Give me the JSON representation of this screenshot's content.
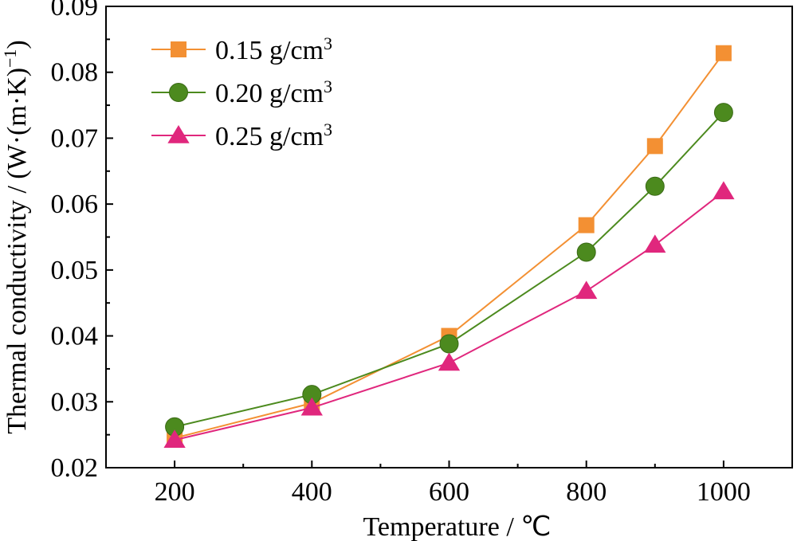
{
  "chart_data": {
    "type": "line",
    "title": "",
    "xlabel": "Temperature / ℃",
    "ylabel": {
      "main": "Thermal conductivity / (W·(m·K)",
      "sup": "−1",
      "end": ")"
    },
    "xlim": [
      100,
      1100
    ],
    "ylim": [
      0.02,
      0.09
    ],
    "xticks": [
      200,
      400,
      600,
      800,
      1000
    ],
    "xtick_labels": [
      "200",
      "400",
      "600",
      "800",
      "1000"
    ],
    "yticks": [
      0.02,
      0.03,
      0.04,
      0.05,
      0.06,
      0.07,
      0.08,
      0.09
    ],
    "ytick_labels": [
      "0.02",
      "0.03",
      "0.04",
      "0.05",
      "0.06",
      "0.07",
      "0.08",
      "0.09"
    ],
    "grid": false,
    "legend_position": "top-left",
    "x": [
      200,
      400,
      600,
      800,
      900,
      1000
    ],
    "series": [
      {
        "name": "0.15 g/cm",
        "name_sup": "3",
        "marker": "square",
        "color": "#F39033",
        "values": [
          0.0245,
          0.0298,
          0.04,
          0.0568,
          0.0688,
          0.0829
        ]
      },
      {
        "name": "0.20 g/cm",
        "name_sup": "3",
        "marker": "circle",
        "color": "#4C8A1E",
        "values": [
          0.0262,
          0.0311,
          0.0388,
          0.0527,
          0.0627,
          0.0739
        ]
      },
      {
        "name": "0.25 g/cm",
        "name_sup": "3",
        "marker": "triangle",
        "color": "#E0277D",
        "values": [
          0.0242,
          0.0291,
          0.0359,
          0.0468,
          0.0538,
          0.0619
        ]
      }
    ]
  }
}
